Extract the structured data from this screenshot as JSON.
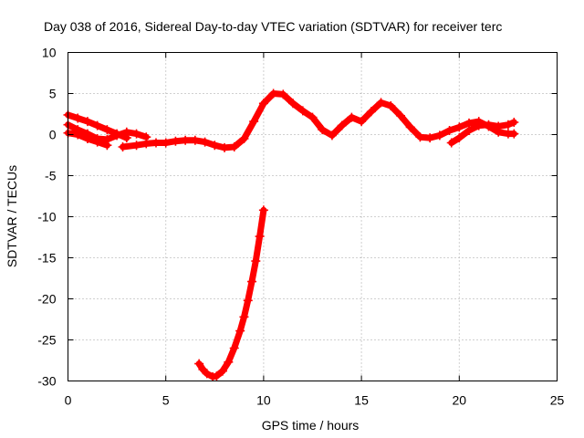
{
  "chart_data": {
    "type": "scatter",
    "title": "Day 038 of 2016, Sidereal Day-to-day VTEC variation (SDTVAR) for receiver terc",
    "xlabel": "GPS time / hours",
    "ylabel": "SDTVAR / TECUs",
    "xlim": [
      0,
      25
    ],
    "ylim": [
      -30,
      10
    ],
    "x_ticks": [
      0,
      5,
      10,
      15,
      20,
      25
    ],
    "y_ticks": [
      -30,
      -25,
      -20,
      -15,
      -10,
      -5,
      0,
      5,
      10
    ],
    "x_tick_labels": [
      "0",
      "5",
      "10",
      "15",
      "20",
      "25"
    ],
    "y_tick_labels": [
      "-30",
      "-25",
      "-20",
      "-15",
      "-10",
      "-5",
      "0",
      "5",
      "10"
    ],
    "grid": true,
    "marker": "plus",
    "color": "#ff0000",
    "series": [
      {
        "name": "track-a",
        "x": [
          0.0,
          0.5,
          1.0,
          1.5,
          2.0,
          2.5,
          3.0
        ],
        "y": [
          2.4,
          2.0,
          1.6,
          1.1,
          0.6,
          0.1,
          -0.4
        ]
      },
      {
        "name": "track-b",
        "x": [
          0.0,
          0.5,
          1.0,
          1.5,
          2.0,
          2.5,
          3.0,
          3.5,
          4.0
        ],
        "y": [
          1.2,
          0.6,
          0.1,
          -0.5,
          -0.6,
          -0.1,
          0.3,
          0.1,
          -0.3
        ]
      },
      {
        "name": "track-c",
        "x": [
          0.0,
          0.5,
          1.0,
          1.5,
          2.0
        ],
        "y": [
          0.2,
          0.0,
          -0.5,
          -0.9,
          -1.3
        ]
      },
      {
        "name": "track-d",
        "x": [
          2.8,
          3.5,
          4.0,
          4.5,
          5.0,
          5.5,
          6.0,
          6.5,
          7.0,
          7.5,
          8.0,
          8.5,
          9.0,
          9.5,
          10.0,
          10.5,
          11.0,
          11.5,
          12.0,
          12.5,
          13.0,
          13.5,
          14.0,
          14.5,
          15.0,
          15.5,
          16.0,
          16.5,
          17.0,
          17.5,
          18.0,
          18.5,
          19.0,
          19.5,
          20.0,
          20.5,
          21.0,
          21.5,
          22.0,
          22.5,
          22.8
        ],
        "y": [
          -1.5,
          -1.3,
          -1.1,
          -1.0,
          -1.0,
          -0.8,
          -0.7,
          -0.7,
          -0.9,
          -1.3,
          -1.6,
          -1.5,
          -0.5,
          1.6,
          3.8,
          5.0,
          4.9,
          3.8,
          2.9,
          2.1,
          0.6,
          -0.1,
          1.1,
          2.1,
          1.6,
          2.8,
          3.9,
          3.5,
          2.3,
          0.9,
          -0.3,
          -0.4,
          -0.1,
          0.5,
          0.9,
          1.4,
          1.6,
          1.0,
          0.3,
          0.1,
          0.1
        ]
      },
      {
        "name": "track-e",
        "x": [
          19.6,
          20.0,
          20.5,
          21.0,
          21.5,
          22.0,
          22.5,
          22.8
        ],
        "y": [
          -1.0,
          -0.4,
          0.5,
          1.1,
          1.2,
          1.0,
          1.2,
          1.5
        ]
      },
      {
        "name": "track-f",
        "x": [
          6.7,
          6.9,
          7.1,
          7.4,
          7.6,
          7.9,
          8.2,
          8.5,
          8.8,
          9.0,
          9.2,
          9.4,
          9.6,
          9.8,
          10.0
        ],
        "y": [
          -27.9,
          -28.6,
          -29.1,
          -29.5,
          -29.4,
          -28.8,
          -27.7,
          -26.0,
          -23.9,
          -22.2,
          -20.2,
          -17.9,
          -15.4,
          -12.4,
          -9.2
        ]
      }
    ]
  }
}
